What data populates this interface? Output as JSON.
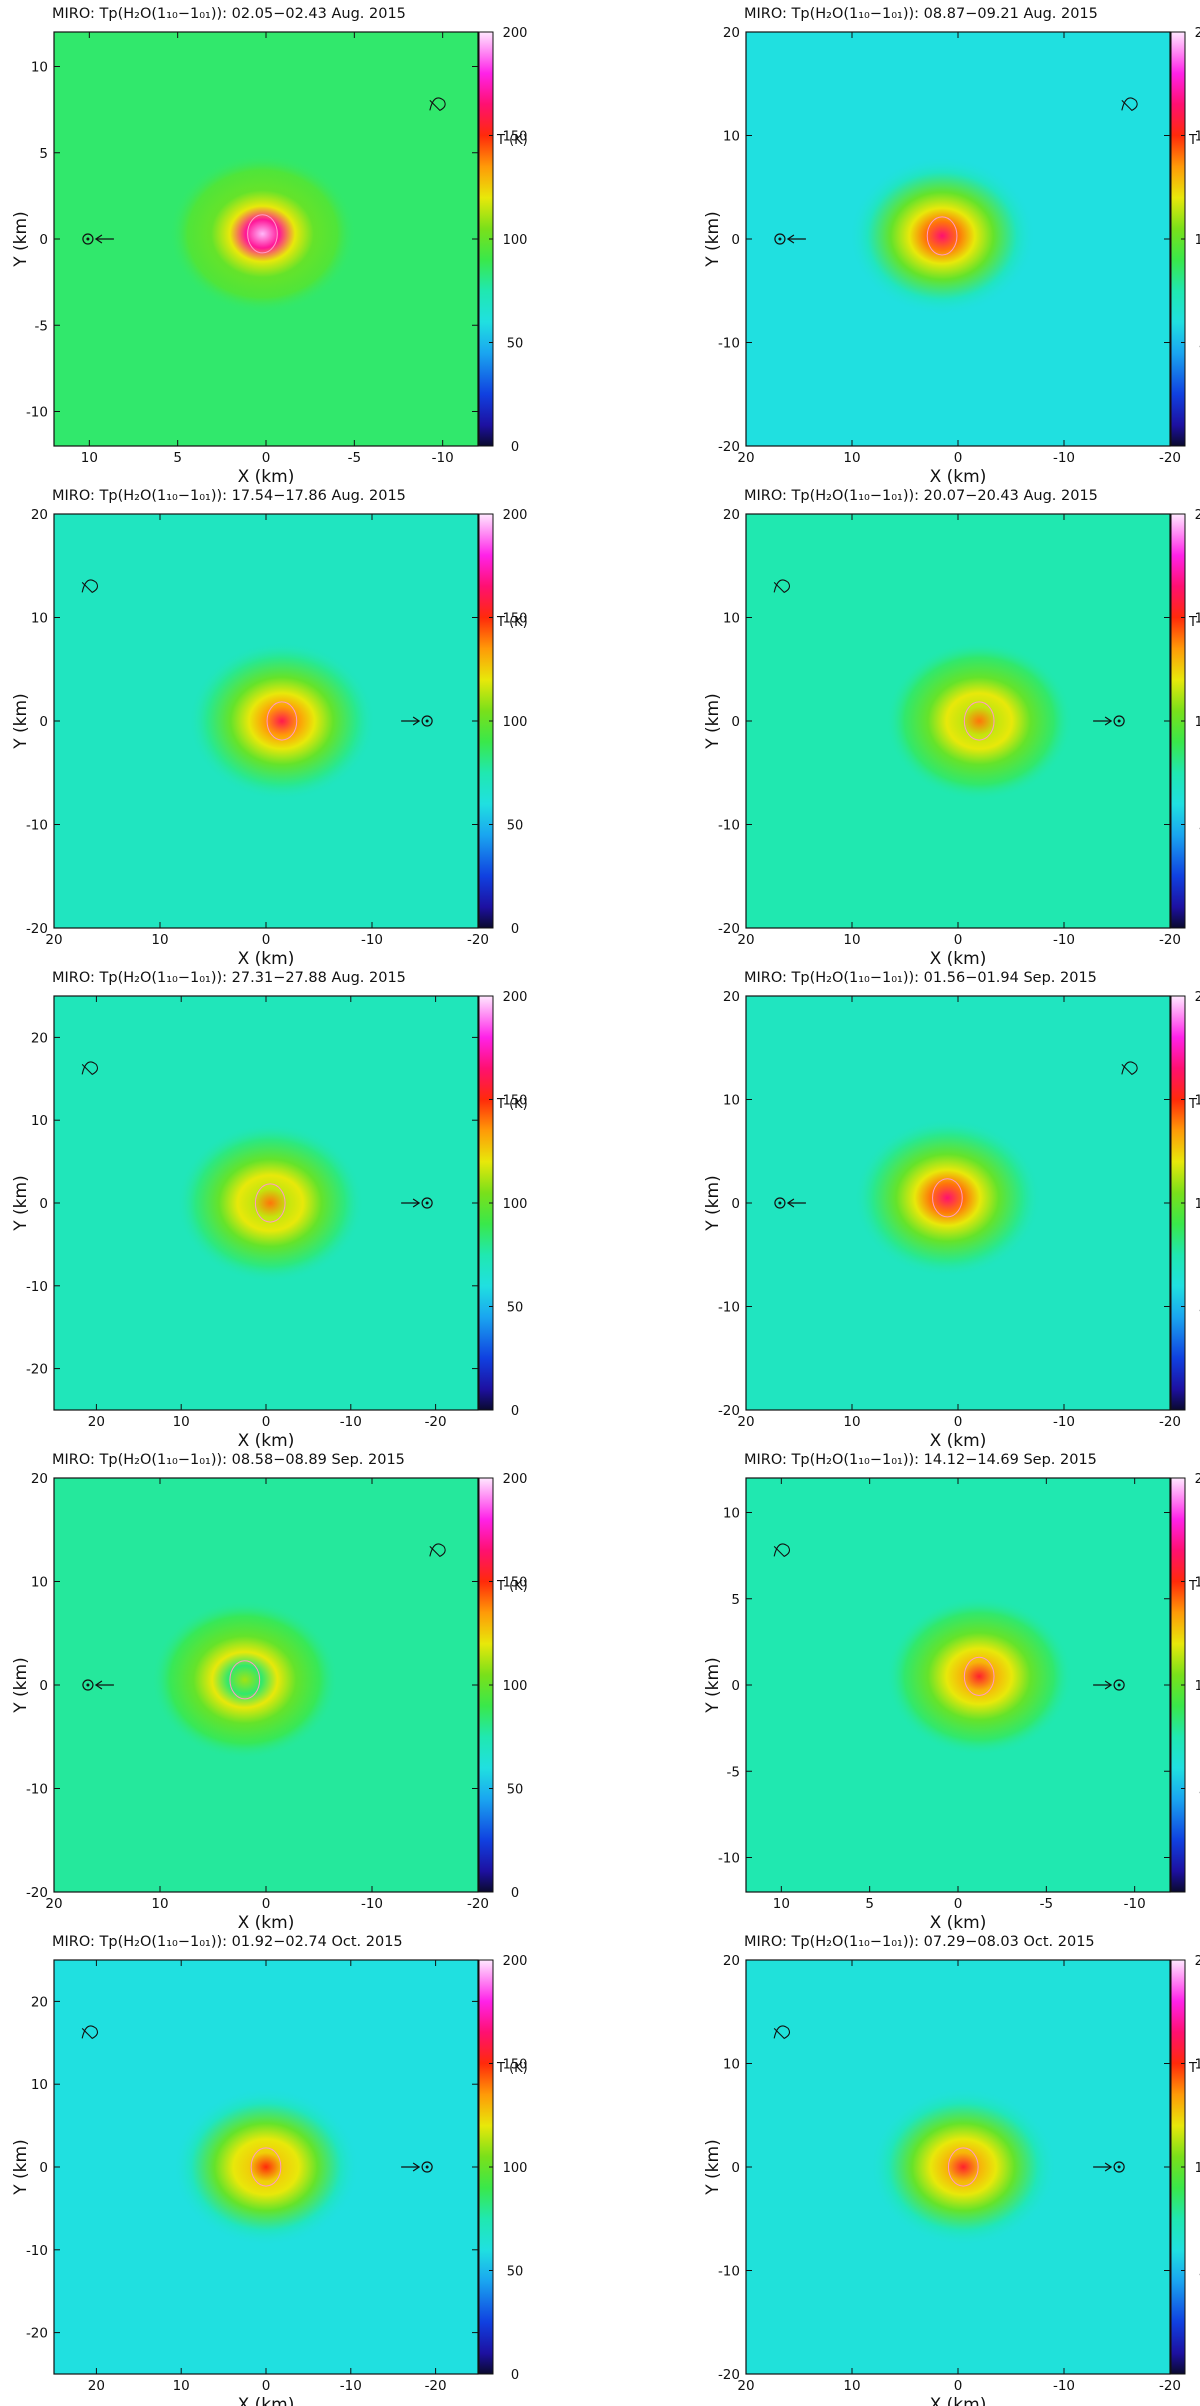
{
  "colorbar": {
    "label": "T (K)",
    "ticks": [
      0,
      50,
      100,
      150,
      200
    ],
    "range": [
      0,
      200
    ],
    "stops": [
      {
        "t": 0,
        "color": "#0a0a2e"
      },
      {
        "t": 10,
        "color": "#1d10a0"
      },
      {
        "t": 25,
        "color": "#1040e0"
      },
      {
        "t": 45,
        "color": "#1aa6f0"
      },
      {
        "t": 60,
        "color": "#20e0e0"
      },
      {
        "t": 75,
        "color": "#20e8b0"
      },
      {
        "t": 90,
        "color": "#3ae84a"
      },
      {
        "t": 105,
        "color": "#7ae01a"
      },
      {
        "t": 120,
        "color": "#e8e80a"
      },
      {
        "t": 135,
        "color": "#ff9a08"
      },
      {
        "t": 150,
        "color": "#ff2a0a"
      },
      {
        "t": 165,
        "color": "#ff1070"
      },
      {
        "t": 180,
        "color": "#ff22e8"
      },
      {
        "t": 200,
        "color": "#ffe8ff"
      }
    ]
  },
  "chart_data": [
    {
      "type": "heatmap",
      "title": "MIRO: Tp(H₂O(1₁₀−1₀₁)): 02.05−02.43 Aug. 2015",
      "xlabel": "X (km)",
      "ylabel": "Y (km)",
      "xlim": [
        12,
        -12
      ],
      "ylim": [
        -12,
        12
      ],
      "xticks": [
        10,
        5,
        0,
        -5,
        -10
      ],
      "yticks": [
        -10,
        -5,
        0,
        5,
        10
      ],
      "colorbar_label": "T (K)",
      "hotspot": {
        "x": 0.2,
        "y": 0.3,
        "peak_T": 195
      },
      "sun_direction": "left",
      "background_T": 85
    },
    {
      "type": "heatmap",
      "title": "MIRO: Tp(H₂O(1₁₀−1₀₁)): 08.87−09.21 Aug. 2015",
      "xlabel": "X (km)",
      "ylabel": "Y (km)",
      "xlim": [
        20,
        -20
      ],
      "ylim": [
        -20,
        20
      ],
      "xticks": [
        20,
        10,
        0,
        -10,
        -20
      ],
      "yticks": [
        -20,
        -10,
        0,
        10,
        20
      ],
      "colorbar_label": "T (K)",
      "hotspot": {
        "x": 1.5,
        "y": 0.3,
        "peak_T": 165
      },
      "sun_direction": "left",
      "background_T": 60
    },
    {
      "type": "heatmap",
      "title": "MIRO: Tp(H₂O(1₁₀−1₀₁)): 17.54−17.86 Aug. 2015",
      "xlabel": "X (km)",
      "ylabel": "Y (km)",
      "xlim": [
        20,
        -20
      ],
      "ylim": [
        -20,
        20
      ],
      "xticks": [
        20,
        10,
        0,
        -10,
        -20
      ],
      "yticks": [
        -20,
        -10,
        0,
        10,
        20
      ],
      "colorbar_label": "T (K)",
      "hotspot": {
        "x": -1.5,
        "y": 0.0,
        "peak_T": 160
      },
      "sun_direction": "right",
      "background_T": 70
    },
    {
      "type": "heatmap",
      "title": "MIRO: Tp(H₂O(1₁₀−1₀₁)): 20.07−20.43 Aug. 2015",
      "xlabel": "X (km)",
      "ylabel": "Y (km)",
      "xlim": [
        20,
        -20
      ],
      "ylim": [
        -20,
        20
      ],
      "xticks": [
        20,
        10,
        0,
        -10,
        -20
      ],
      "yticks": [
        -20,
        -10,
        0,
        10,
        20
      ],
      "colorbar_label": "T (K)",
      "hotspot": {
        "x": -2.0,
        "y": 0.0,
        "peak_T": 140
      },
      "sun_direction": "right",
      "background_T": 75
    },
    {
      "type": "heatmap",
      "title": "MIRO: Tp(H₂O(1₁₀−1₀₁)): 27.31−27.88 Aug. 2015",
      "xlabel": "X (km)",
      "ylabel": "Y (km)",
      "xlim": [
        25,
        -25
      ],
      "ylim": [
        -25,
        25
      ],
      "xticks": [
        20,
        10,
        0,
        -10,
        -20
      ],
      "yticks": [
        -20,
        -10,
        0,
        10,
        20
      ],
      "colorbar_label": "T (K)",
      "hotspot": {
        "x": -0.5,
        "y": 0.0,
        "peak_T": 140
      },
      "sun_direction": "right",
      "background_T": 72
    },
    {
      "type": "heatmap",
      "title": "MIRO: Tp(H₂O(1₁₀−1₀₁)): 01.56−01.94 Sep. 2015",
      "xlabel": "X (km)",
      "ylabel": "Y (km)",
      "xlim": [
        20,
        -20
      ],
      "ylim": [
        -20,
        20
      ],
      "xticks": [
        20,
        10,
        0,
        -10,
        -20
      ],
      "yticks": [
        -20,
        -10,
        0,
        10,
        20
      ],
      "colorbar_label": "T (K)",
      "hotspot": {
        "x": 1.0,
        "y": 0.5,
        "peak_T": 165
      },
      "sun_direction": "left",
      "background_T": 70
    },
    {
      "type": "heatmap",
      "title": "MIRO: Tp(H₂O(1₁₀−1₀₁)): 08.58−08.89 Sep. 2015",
      "xlabel": "X (km)",
      "ylabel": "Y (km)",
      "xlim": [
        20,
        -20
      ],
      "ylim": [
        -20,
        20
      ],
      "xticks": [
        20,
        10,
        0,
        -10,
        -20
      ],
      "yticks": [
        -20,
        -10,
        0,
        10,
        20
      ],
      "colorbar_label": "T (K)",
      "hotspot": {
        "x": 2.0,
        "y": 0.5,
        "peak_T": 110
      },
      "sun_direction": "left",
      "background_T": 78
    },
    {
      "type": "heatmap",
      "title": "MIRO: Tp(H₂O(1₁₀−1₀₁)): 14.12−14.69 Sep. 2015",
      "xlabel": "X (km)",
      "ylabel": "Y (km)",
      "xlim": [
        12,
        -12
      ],
      "ylim": [
        -12,
        12
      ],
      "xticks": [
        10,
        5,
        0,
        -5,
        -10
      ],
      "yticks": [
        -10,
        -5,
        0,
        5,
        10
      ],
      "colorbar_label": "T (K)",
      "hotspot": {
        "x": -1.2,
        "y": 0.5,
        "peak_T": 155
      },
      "sun_direction": "right",
      "background_T": 75
    },
    {
      "type": "heatmap",
      "title": "MIRO: Tp(H₂O(1₁₀−1₀₁)): 01.92−02.74 Oct. 2015",
      "xlabel": "X (km)",
      "ylabel": "Y (km)",
      "xlim": [
        25,
        -25
      ],
      "ylim": [
        -25,
        25
      ],
      "xticks": [
        20,
        10,
        0,
        -10,
        -20
      ],
      "yticks": [
        -20,
        -10,
        0,
        10,
        20
      ],
      "colorbar_label": "T (K)",
      "hotspot": {
        "x": 0.0,
        "y": 0.0,
        "peak_T": 150
      },
      "sun_direction": "right",
      "background_T": 60
    },
    {
      "type": "heatmap",
      "title": "MIRO: Tp(H₂O(1₁₀−1₀₁)): 07.29−08.03 Oct. 2015",
      "xlabel": "X (km)",
      "ylabel": "Y (km)",
      "xlim": [
        20,
        -20
      ],
      "ylim": [
        -20,
        20
      ],
      "xticks": [
        20,
        10,
        0,
        -10,
        -20
      ],
      "yticks": [
        -20,
        -10,
        0,
        10,
        20
      ],
      "colorbar_label": "T (K)",
      "hotspot": {
        "x": -0.5,
        "y": 0.0,
        "peak_T": 155
      },
      "sun_direction": "right",
      "background_T": 62
    }
  ]
}
